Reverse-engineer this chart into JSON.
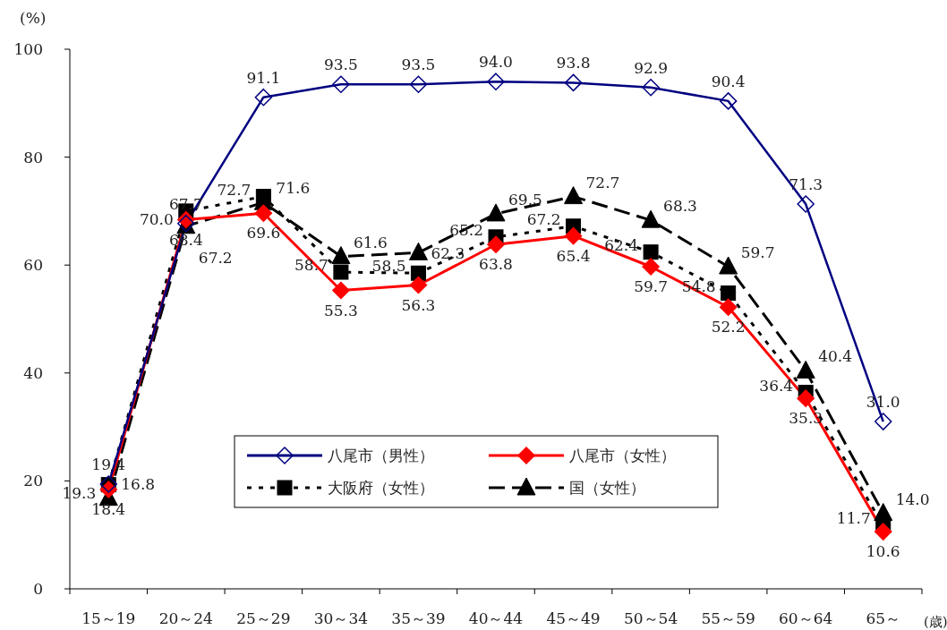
{
  "chart_data": {
    "type": "line",
    "ylabel": "(%)",
    "xlabel": "(歳)",
    "categories": [
      "15～19",
      "20～24",
      "25～29",
      "30～34",
      "35～39",
      "40～44",
      "45～49",
      "50～54",
      "55～59",
      "60～64",
      "65～"
    ],
    "ylim": [
      0,
      100
    ],
    "yticks": [
      0,
      20,
      40,
      60,
      80,
      100
    ],
    "grid": false,
    "legend": "bottom",
    "series": [
      {
        "name": "八尾市（男性）",
        "color": "#000080",
        "marker": "diamond",
        "line_style": "solid",
        "values": [
          19.4,
          67.7,
          91.1,
          93.5,
          93.5,
          94.0,
          93.8,
          92.9,
          90.4,
          71.3,
          31.0
        ],
        "value_labels": [
          "19.4",
          "67.7",
          "91.1",
          "93.5",
          "93.5",
          "94.0",
          "93.8",
          "92.9",
          "90.4",
          "71.3",
          "31.0"
        ]
      },
      {
        "name": "八尾市（女性）",
        "color": "#ff0000",
        "marker": "diamond",
        "line_style": "solid",
        "values": [
          18.4,
          68.4,
          69.6,
          55.3,
          56.3,
          63.8,
          65.4,
          59.7,
          52.2,
          35.3,
          10.6
        ],
        "value_labels": [
          "18.4",
          "68.4",
          "69.6",
          "55.3",
          "56.3",
          "63.8",
          "65.4",
          "59.7",
          "52.2",
          "35.3",
          "10.6"
        ]
      },
      {
        "name": "大阪府（女性）",
        "color": "#000000",
        "marker": "square",
        "line_style": "dotted",
        "values": [
          19.3,
          70.0,
          72.7,
          58.7,
          58.5,
          65.2,
          67.2,
          62.4,
          54.8,
          36.4,
          11.7
        ],
        "value_labels": [
          "19.3",
          "70.0",
          "72.7",
          "58.7",
          "58.5",
          "65.2",
          "67.2",
          "62.4",
          "54.8",
          "36.4",
          "11.7"
        ]
      },
      {
        "name": "国（女性）",
        "color": "#000000",
        "marker": "triangle",
        "line_style": "dashed",
        "values": [
          16.8,
          67.2,
          71.6,
          61.6,
          62.3,
          69.5,
          72.7,
          68.3,
          59.7,
          40.4,
          14.0
        ],
        "value_labels": [
          "16.8",
          "67.2",
          "71.6",
          "61.6",
          "62.3",
          "69.5",
          "72.7",
          "68.3",
          "59.7",
          "40.4",
          "14.0"
        ]
      }
    ]
  }
}
